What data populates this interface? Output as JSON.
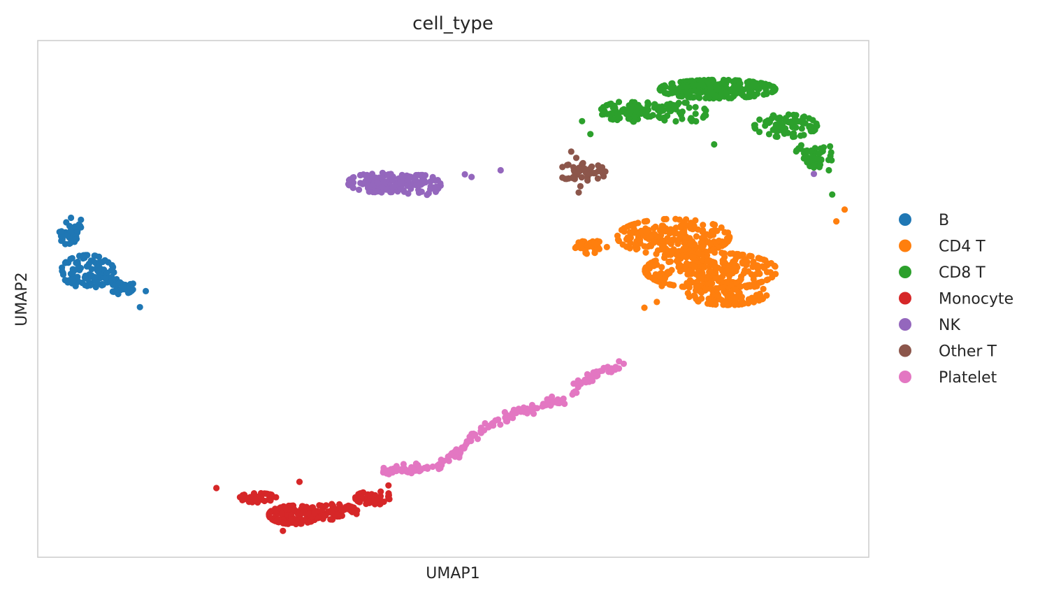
{
  "chart_data": {
    "type": "scatter",
    "title": "cell_type",
    "xlabel": "UMAP1",
    "ylabel": "UMAP2",
    "grid": false,
    "xticks": false,
    "yticks": false,
    "legend_position": "right",
    "point_estimation": "UMAP axes are unlabeled; coordinates are approximate positions on a normalized 0-100 scale in both axes (x left-to-right, y bottom-to-top).",
    "series": [
      {
        "name": "B",
        "color": "#1f77b4",
        "clusters": [
          {
            "cx": 4.0,
            "cy": 62.6,
            "rx": 1.4,
            "ry": 2.5,
            "n": 40
          },
          {
            "cx": 6.0,
            "cy": 55.3,
            "rx": 3.2,
            "ry": 3.2,
            "n": 110
          },
          {
            "cx": 10.0,
            "cy": 52.4,
            "rx": 1.6,
            "ry": 1.5,
            "n": 35
          }
        ],
        "points": [
          [
            4.0,
            65.7
          ],
          [
            5.2,
            65.3
          ],
          [
            12.3,
            48.4
          ],
          [
            4.2,
            54.9
          ],
          [
            13.0,
            51.5
          ]
        ]
      },
      {
        "name": "CD4 T",
        "color": "#ff7f0e",
        "clusters": [
          {
            "cx": 76.5,
            "cy": 62.0,
            "rx": 6.8,
            "ry": 3.5,
            "n": 230
          },
          {
            "cx": 66.5,
            "cy": 60.0,
            "rx": 2.0,
            "ry": 1.3,
            "n": 35
          },
          {
            "cx": 81.0,
            "cy": 55.5,
            "rx": 8.0,
            "ry": 3.5,
            "n": 280
          },
          {
            "cx": 83.0,
            "cy": 51.0,
            "rx": 4.8,
            "ry": 2.2,
            "n": 110
          }
        ],
        "points": [
          [
            73.0,
            48.3
          ],
          [
            74.5,
            49.4
          ],
          [
            97.1,
            67.3
          ],
          [
            96.1,
            65.0
          ],
          [
            75.1,
            52.5
          ]
        ]
      },
      {
        "name": "CD8 T",
        "color": "#2ca02c",
        "clusters": [
          {
            "cx": 81.8,
            "cy": 90.6,
            "rx": 7.0,
            "ry": 1.8,
            "n": 230
          },
          {
            "cx": 71.5,
            "cy": 86.3,
            "rx": 3.8,
            "ry": 2.0,
            "n": 80
          },
          {
            "cx": 77.5,
            "cy": 86.0,
            "rx": 3.0,
            "ry": 2.0,
            "n": 45
          },
          {
            "cx": 90.0,
            "cy": 83.5,
            "rx": 3.8,
            "ry": 2.2,
            "n": 80
          },
          {
            "cx": 93.5,
            "cy": 78.0,
            "rx": 2.3,
            "ry": 2.6,
            "n": 45
          }
        ],
        "points": [
          [
            65.5,
            84.4
          ],
          [
            66.5,
            81.9
          ],
          [
            81.4,
            79.9
          ],
          [
            78.7,
            84.4
          ],
          [
            95.2,
            74.9
          ],
          [
            92.7,
            76.5
          ],
          [
            95.6,
            70.2
          ]
        ]
      },
      {
        "name": "Monocyte",
        "color": "#d62728",
        "clusters": [
          {
            "cx": 26.5,
            "cy": 11.5,
            "rx": 2.2,
            "ry": 0.9,
            "n": 45
          },
          {
            "cx": 30.8,
            "cy": 8.2,
            "rx": 3.0,
            "ry": 1.8,
            "n": 110
          },
          {
            "cx": 35.5,
            "cy": 8.8,
            "rx": 3.0,
            "ry": 1.5,
            "n": 70
          },
          {
            "cx": 40.5,
            "cy": 11.5,
            "rx": 2.3,
            "ry": 1.3,
            "n": 40
          }
        ],
        "points": [
          [
            21.5,
            13.4
          ],
          [
            29.5,
            5.1
          ],
          [
            31.5,
            14.6
          ],
          [
            42.2,
            13.9
          ]
        ]
      },
      {
        "name": "NK",
        "color": "#9467bd",
        "clusters": [
          {
            "cx": 41.5,
            "cy": 72.5,
            "rx": 4.2,
            "ry": 1.9,
            "n": 100
          },
          {
            "cx": 46.0,
            "cy": 72.0,
            "rx": 2.5,
            "ry": 2.0,
            "n": 50
          }
        ],
        "points": [
          [
            51.4,
            74.1
          ],
          [
            52.2,
            73.6
          ],
          [
            55.7,
            74.9
          ],
          [
            93.4,
            74.2
          ]
        ]
      },
      {
        "name": "Other T",
        "color": "#8c564b",
        "clusters": [
          {
            "cx": 65.5,
            "cy": 74.5,
            "rx": 2.9,
            "ry": 1.8,
            "n": 45
          }
        ],
        "points": [
          [
            64.2,
            78.5
          ],
          [
            64.8,
            77.3
          ],
          [
            65.1,
            70.6
          ],
          [
            65.3,
            71.8
          ]
        ]
      },
      {
        "name": "Platelet",
        "color": "#e377c2",
        "path": [
          [
            41.5,
            16.5
          ],
          [
            44.7,
            17.2
          ],
          [
            48.5,
            17.8
          ],
          [
            50.8,
            20.8
          ],
          [
            52.3,
            23.2
          ],
          [
            53.5,
            24.7
          ],
          [
            57.0,
            27.5
          ],
          [
            61.0,
            29.7
          ],
          [
            63.5,
            30.5
          ],
          [
            65.0,
            33.0
          ],
          [
            67.0,
            35.3
          ],
          [
            70.0,
            37.0
          ]
        ],
        "n": 200
      }
    ]
  }
}
